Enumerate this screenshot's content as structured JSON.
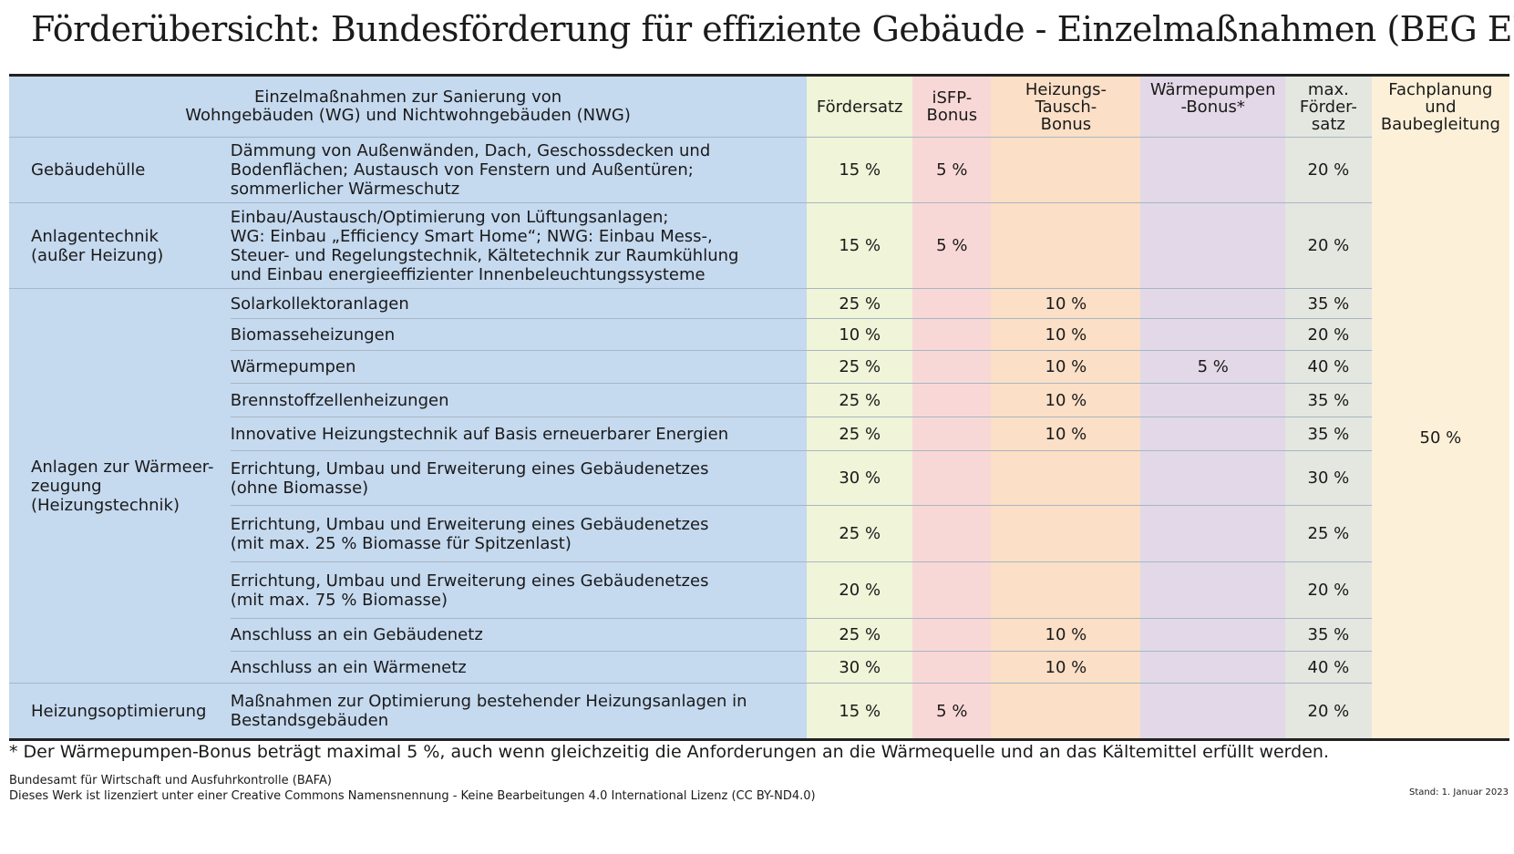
{
  "title": "Förderübersicht: Bundesförderung für effiziente Gebäude - Einzelmaßnahmen (BEG EM)",
  "header": {
    "col_description": "Einzelmaßnahmen zur Sanierung von\nWohngebäuden (WG) und Nichtwohngebäuden (NWG)",
    "col_foerdersatz": "Fördersatz",
    "col_isfp": "iSFP-\nBonus",
    "col_heizungstausch": "Heizungs-\nTausch-\nBonus",
    "col_waermepumpen": "Wärmepumpen\n-Bonus*",
    "col_max": "max.\nFörder-\nsatz",
    "col_fachplanung": "Fachplanung\nund\nBaubegleitung"
  },
  "groups": [
    {
      "category": "Gebäudehülle",
      "rows": [
        {
          "measure": "Dämmung von Außenwänden, Dach, Geschossdecken und\nBodenflächen; Austausch von Fenstern und Außentüren;\nsommerlicher Wärmeschutz",
          "foerdersatz": "15 %",
          "isfp": "5 %",
          "heizungstausch": "",
          "waermepumpen": "",
          "max": "20 %"
        }
      ]
    },
    {
      "category": "Anlagentechnik\n(außer Heizung)",
      "rows": [
        {
          "measure": "Einbau/Austausch/Optimierung von Lüftungsanlagen;\nWG: Einbau „Efficiency Smart Home“; NWG: Einbau Mess-,\nSteuer- und Regelungstechnik, Kältetechnik zur Raumkühlung\nund Einbau energieeffizienter Innenbeleuchtungssysteme",
          "foerdersatz": "15 %",
          "isfp": "5 %",
          "heizungstausch": "",
          "waermepumpen": "",
          "max": "20 %"
        }
      ]
    },
    {
      "category": "Anlagen zur Wärmeer-\nzeugung\n(Heizungstechnik)",
      "rows": [
        {
          "measure": "Solarkollektoranlagen",
          "foerdersatz": "25 %",
          "isfp": "",
          "heizungstausch": "10 %",
          "waermepumpen": "",
          "max": "35 %"
        },
        {
          "measure": "Biomasseheizungen",
          "foerdersatz": "10 %",
          "isfp": "",
          "heizungstausch": "10 %",
          "waermepumpen": "",
          "max": "20 %"
        },
        {
          "measure": "Wärmepumpen",
          "foerdersatz": "25 %",
          "isfp": "",
          "heizungstausch": "10 %",
          "waermepumpen": "5 %",
          "max": "40 %"
        },
        {
          "measure": "Brennstoffzellenheizungen",
          "foerdersatz": "25 %",
          "isfp": "",
          "heizungstausch": "10 %",
          "waermepumpen": "",
          "max": "35 %"
        },
        {
          "measure": "Innovative Heizungstechnik auf Basis erneuerbarer Energien",
          "foerdersatz": "25 %",
          "isfp": "",
          "heizungstausch": "10 %",
          "waermepumpen": "",
          "max": "35 %"
        },
        {
          "measure": "Errichtung, Umbau und Erweiterung eines Gebäudenetzes\n(ohne Biomasse)",
          "foerdersatz": "30 %",
          "isfp": "",
          "heizungstausch": "",
          "waermepumpen": "",
          "max": "30 %"
        },
        {
          "measure": "Errichtung, Umbau und Erweiterung eines Gebäudenetzes\n(mit max. 25 % Biomasse für Spitzenlast)",
          "foerdersatz": "25 %",
          "isfp": "",
          "heizungstausch": "",
          "waermepumpen": "",
          "max": "25 %"
        },
        {
          "measure": "Errichtung, Umbau und Erweiterung eines Gebäudenetzes\n(mit max. 75 % Biomasse)",
          "foerdersatz": "20 %",
          "isfp": "",
          "heizungstausch": "",
          "waermepumpen": "",
          "max": "20 %"
        },
        {
          "measure": "Anschluss an ein Gebäudenetz",
          "foerdersatz": "25 %",
          "isfp": "",
          "heizungstausch": "10 %",
          "waermepumpen": "",
          "max": "35 %"
        },
        {
          "measure": "Anschluss an ein Wärmenetz",
          "foerdersatz": "30 %",
          "isfp": "",
          "heizungstausch": "10 %",
          "waermepumpen": "",
          "max": "40 %"
        }
      ]
    },
    {
      "category": "Heizungsoptimierung",
      "rows": [
        {
          "measure": "Maßnahmen zur Optimierung bestehender Heizungsanlagen in\nBestandsgebäuden",
          "foerdersatz": "15 %",
          "isfp": "5 %",
          "heizungstausch": "",
          "waermepumpen": "",
          "max": "20 %"
        }
      ]
    }
  ],
  "fachplanung_value": "50 %",
  "footnote": "* Der Wärmepumpen-Bonus beträgt maximal 5 %, auch wenn gleichzeitig die Anforderungen an die Wärmequelle und an das Kältemittel erfüllt werden.",
  "source_line1": "Bundesamt für Wirtschaft und Ausfuhrkontrolle (BAFA)",
  "source_line2": "Dieses Werk ist lizenziert unter einer Creative Commons Namensnennung - Keine Bearbeitungen 4.0 International Lizenz (CC BY-ND4.0)",
  "stand": "Stand: 1. Januar 2023",
  "colors": {
    "description_bg": "#c5d9ef",
    "foerdersatz_bg": "#f0f4d8",
    "isfp_bg": "#f8d8d6",
    "heizungstausch_bg": "#fbdfc6",
    "waermepumpen_bg": "#e2d8e7",
    "max_bg": "#e4e6e0",
    "fachplanung_bg": "#fdf0d8"
  }
}
